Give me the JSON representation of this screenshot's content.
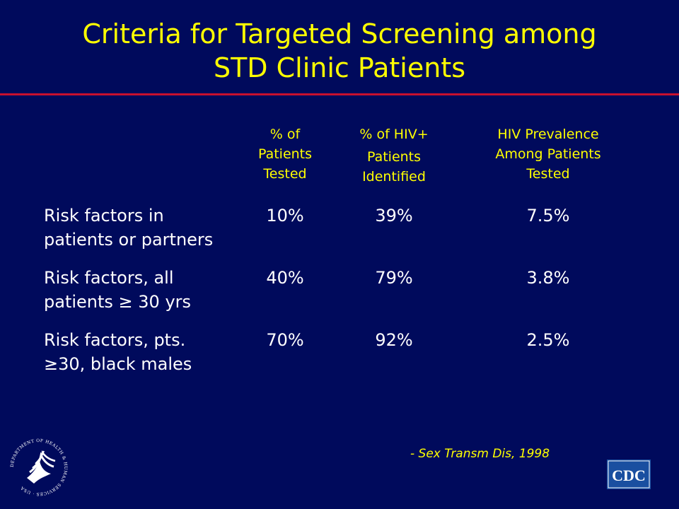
{
  "title": {
    "line1": "Criteria for Targeted Screening among",
    "line2": "STD Clinic Patients"
  },
  "table": {
    "headers": [
      {
        "line1": "% of",
        "line2": "Patients",
        "line3": "Tested"
      },
      {
        "line1": "% of HIV+",
        "line2": "Patients",
        "line3": "Identified"
      },
      {
        "line1": "HIV Prevalence",
        "line2": "Among Patients",
        "line3": "Tested"
      }
    ],
    "rows": [
      {
        "label_line1": "Risk factors in",
        "label_line2": "patients or partners",
        "values": [
          "10%",
          "39%",
          "7.5%"
        ]
      },
      {
        "label_line1": "Risk factors, all",
        "label_line2": "patients ≥ 30 yrs",
        "values": [
          "40%",
          "79%",
          "3.8%"
        ]
      },
      {
        "label_line1": "Risk factors, pts.",
        "label_line2": "≥30, black males",
        "values": [
          "70%",
          "92%",
          "2.5%"
        ]
      }
    ]
  },
  "citation": "- Sex Transm Dis, 1998",
  "logos": {
    "left_icon": "hhs-eagle-seal-icon",
    "right_icon": "cdc-logo-icon",
    "right_text": "CDC",
    "seal_text": "DEPARTMENT OF HEALTH & HUMAN SERVICES · USA"
  },
  "colors": {
    "background": "#000a5c",
    "title": "#ffff00",
    "rule": "#c8102e",
    "body_text": "#ffffff",
    "cdc_logo": "#1a4fa0"
  }
}
